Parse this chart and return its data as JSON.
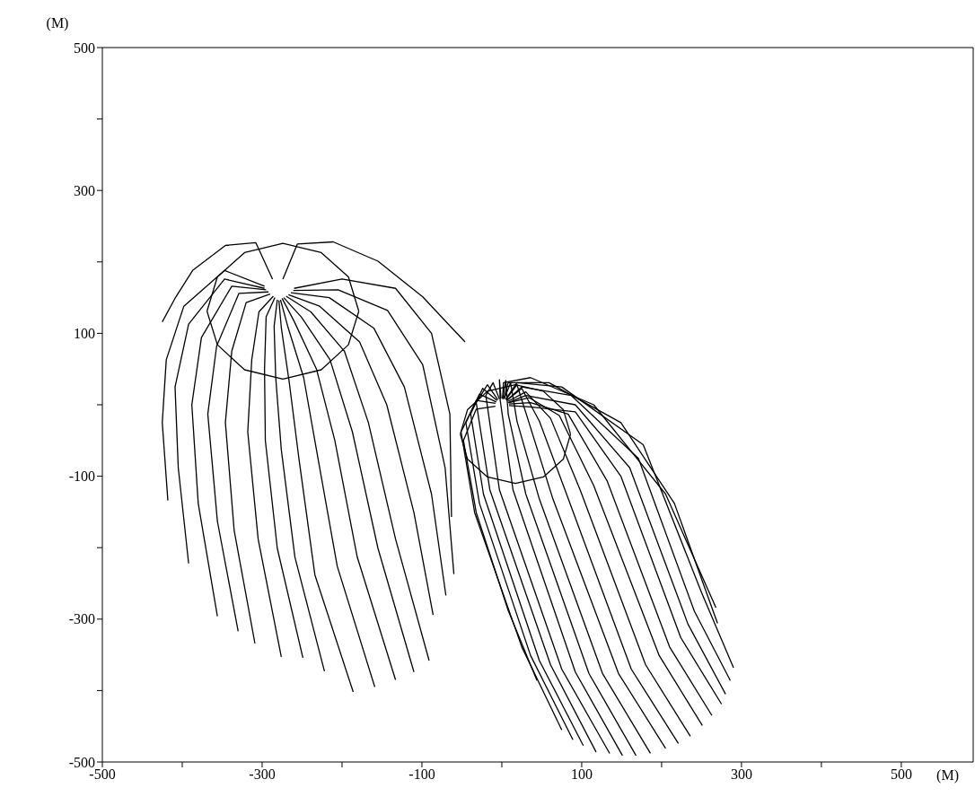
{
  "chart_data": {
    "type": "line",
    "xlabel": "(M)",
    "ylabel": "(M)",
    "xlim": [
      -500,
      590
    ],
    "ylim": [
      -500,
      500
    ],
    "xticks": [
      -500,
      {
        "value": -400,
        "label": null
      },
      -300,
      {
        "value": -200,
        "label": null
      },
      -100,
      {
        "value": 0,
        "label": null
      },
      100,
      {
        "value": 200,
        "label": null
      },
      300,
      {
        "value": 400,
        "label": null
      },
      500
    ],
    "yticks": [
      -500,
      {
        "value": -400,
        "label": null
      },
      -300,
      {
        "value": -200,
        "label": null
      },
      -100,
      {
        "value": 0,
        "label": null
      },
      100,
      {
        "value": 200,
        "label": null
      },
      300,
      {
        "value": 400,
        "label": null
      },
      500
    ],
    "grid": false,
    "marker": "none",
    "line_style": "solid",
    "series": [
      {
        "color": "#000000",
        "x": [
          -369,
          -356,
          -322,
          -274,
          -226,
          -192,
          -179
        ],
        "values": [
          131,
          179,
          213,
          226,
          213,
          179,
          131
        ]
      },
      {
        "color": "#000000",
        "x": [
          -369,
          -356,
          -322,
          -274,
          -226,
          -192,
          -179
        ],
        "values": [
          131,
          84,
          49,
          36,
          49,
          84,
          131
        ]
      },
      {
        "color": "#000000",
        "x": [
          -52,
          -43,
          -18,
          17,
          52,
          77,
          86
        ],
        "values": [
          -41,
          -7,
          19,
          28,
          19,
          -7,
          -41
        ]
      },
      {
        "color": "#000000",
        "x": [
          -52,
          -43,
          -18,
          17,
          52,
          77,
          86
        ],
        "values": [
          -41,
          -76,
          -101,
          -110,
          -101,
          -76,
          -41
        ]
      },
      {
        "color": "#000000",
        "x": [
          -287,
          -308,
          -346,
          -387,
          -408,
          -425
        ],
        "values": [
          176,
          227,
          223,
          188,
          151,
          116
        ]
      },
      {
        "color": "#000000",
        "x": [
          -274,
          -256,
          -211,
          -155,
          -99,
          -46
        ],
        "values": [
          176,
          225,
          228,
          201,
          151,
          88
        ]
      },
      {
        "color": "#000000",
        "x": [
          -297,
          -347,
          -398,
          -420,
          -425,
          -418
        ],
        "values": [
          166,
          188,
          138,
          63,
          -25,
          -134
        ]
      },
      {
        "color": "#000000",
        "x": [
          -297,
          -347,
          -392,
          -409,
          -405,
          -392
        ],
        "values": [
          163,
          176,
          113,
          25,
          -88,
          -222
        ]
      },
      {
        "color": "#000000",
        "x": [
          -295,
          -338,
          -376,
          -388,
          -380,
          -356
        ],
        "values": [
          161,
          166,
          94,
          0,
          -138,
          -296
        ]
      },
      {
        "color": "#000000",
        "x": [
          -292,
          -329,
          -357,
          -368,
          -356,
          -330
        ],
        "values": [
          158,
          156,
          82,
          -13,
          -163,
          -317
        ]
      },
      {
        "color": "#000000",
        "x": [
          -290,
          -320,
          -338,
          -346,
          -335,
          -309
        ],
        "values": [
          155,
          143,
          75,
          -25,
          -176,
          -334
        ]
      },
      {
        "color": "#000000",
        "x": [
          -286,
          -304,
          -313,
          -318,
          -305,
          -276
        ],
        "values": [
          152,
          130,
          63,
          -38,
          -188,
          -353
        ]
      },
      {
        "color": "#000000",
        "x": [
          -284,
          -295,
          -297,
          -296,
          -281,
          -249
        ],
        "values": [
          150,
          123,
          50,
          -50,
          -201,
          -354
        ]
      },
      {
        "color": "#000000",
        "x": [
          -281,
          -285,
          -283,
          -276,
          -259,
          -222
        ],
        "values": [
          147,
          110,
          38,
          -63,
          -213,
          -373
        ]
      },
      {
        "color": "#000000",
        "x": [
          -279,
          -276,
          -266,
          -254,
          -234,
          -186
        ],
        "values": [
          146,
          108,
          31,
          -75,
          -238,
          -402
        ]
      },
      {
        "color": "#000000",
        "x": [
          -277,
          -268,
          -248,
          -232,
          -206,
          -159
        ],
        "values": [
          147,
          110,
          38,
          -63,
          -226,
          -395
        ]
      },
      {
        "color": "#000000",
        "x": [
          -275,
          -260,
          -232,
          -209,
          -181,
          -133
        ],
        "values": [
          149,
          117,
          50,
          -50,
          -213,
          -385
        ]
      },
      {
        "color": "#000000",
        "x": [
          -273,
          -251,
          -215,
          -187,
          -155,
          -110
        ],
        "values": [
          150,
          123,
          63,
          -38,
          -201,
          -374
        ]
      },
      {
        "color": "#000000",
        "x": [
          -270,
          -239,
          -197,
          -167,
          -133,
          -91
        ],
        "values": [
          152,
          130,
          75,
          -25,
          -188,
          -358
        ]
      },
      {
        "color": "#000000",
        "x": [
          -267,
          -228,
          -178,
          -144,
          -110,
          -86
        ],
        "values": [
          154,
          138,
          88,
          0,
          -151,
          -294
        ]
      },
      {
        "color": "#000000",
        "x": [
          -264,
          -216,
          -160,
          -122,
          -88,
          -70
        ],
        "values": [
          157,
          150,
          107,
          25,
          -125,
          -267
        ]
      },
      {
        "color": "#000000",
        "x": [
          -261,
          -205,
          -143,
          -99,
          -71,
          -60
        ],
        "values": [
          160,
          161,
          132,
          56,
          -88,
          -237
        ]
      },
      {
        "color": "#000000",
        "x": [
          -260,
          -200,
          -133,
          -88,
          -65,
          -63
        ],
        "values": [
          163,
          176,
          163,
          100,
          -13,
          -157
        ]
      },
      {
        "color": "#000000",
        "x": [
          -8,
          -32,
          -48,
          -32,
          8,
          44
        ],
        "values": [
          -2,
          -6,
          -50,
          -151,
          -288,
          -386
        ]
      },
      {
        "color": "#000000",
        "x": [
          -8,
          -32,
          -51,
          -34,
          25,
          75
        ],
        "values": [
          2,
          6,
          -38,
          -151,
          -339,
          -455
        ]
      },
      {
        "color": "#000000",
        "x": [
          -7,
          -28,
          -45,
          -28,
          36,
          89
        ],
        "values": [
          4,
          15,
          -25,
          -138,
          -351,
          -469
        ]
      },
      {
        "color": "#000000",
        "x": [
          -6,
          -24,
          -39,
          -23,
          47,
          102
        ],
        "values": [
          6,
          23,
          -13,
          -125,
          -358,
          -477
        ]
      },
      {
        "color": "#000000",
        "x": [
          -5,
          -18,
          -32,
          -15,
          61,
          118
        ],
        "values": [
          7,
          28,
          3,
          -119,
          -364,
          -486
        ]
      },
      {
        "color": "#000000",
        "x": [
          -3,
          -11,
          -20,
          -3,
          75,
          135
        ],
        "values": [
          8,
          31,
          13,
          -119,
          -370,
          -488
        ]
      },
      {
        "color": "#000000",
        "x": [
          -1,
          -3,
          -2,
          14,
          92,
          151
        ],
        "values": [
          9,
          35,
          6,
          -119,
          -374,
          -491
        ]
      },
      {
        "color": "#000000",
        "x": [
          1,
          5,
          8,
          30,
          109,
          168
        ],
        "values": [
          9,
          34,
          -13,
          -125,
          -376,
          -491
        ]
      },
      {
        "color": "#000000",
        "x": [
          3,
          11,
          19,
          47,
          126,
          186
        ],
        "values": [
          8,
          31,
          -23,
          -132,
          -376,
          -488
        ]
      },
      {
        "color": "#000000",
        "x": [
          5,
          19,
          34,
          64,
          146,
          205
        ],
        "values": [
          7,
          28,
          -25,
          -132,
          -376,
          -481
        ]
      },
      {
        "color": "#000000",
        "x": [
          6,
          25,
          47,
          81,
          162,
          221
        ],
        "values": [
          6,
          23,
          -23,
          -125,
          -370,
          -474
        ]
      },
      {
        "color": "#000000",
        "x": [
          8,
          30,
          61,
          98,
          180,
          236
        ],
        "values": [
          5,
          18,
          -19,
          -119,
          -364,
          -464
        ]
      },
      {
        "color": "#000000",
        "x": [
          9,
          34,
          72,
          115,
          197,
          251
        ],
        "values": [
          3,
          10,
          -15,
          -113,
          -351,
          -449
        ]
      },
      {
        "color": "#000000",
        "x": [
          9,
          36,
          83,
          132,
          210,
          263
        ],
        "values": [
          1,
          3,
          -13,
          -107,
          -339,
          -435
        ]
      },
      {
        "color": "#000000",
        "x": [
          9,
          36,
          92,
          149,
          224,
          275
        ],
        "values": [
          -1,
          -3,
          -10,
          -100,
          -326,
          -419
        ]
      },
      {
        "color": "#000000",
        "x": [
          8,
          30,
          92,
          160,
          233,
          280
        ],
        "values": [
          3,
          13,
          0,
          -88,
          -307,
          -405
        ]
      },
      {
        "color": "#000000",
        "x": [
          7,
          25,
          87,
          171,
          241,
          286
        ],
        "values": [
          7,
          25,
          13,
          -75,
          -289,
          -386
        ]
      },
      {
        "color": "#000000",
        "x": [
          5,
          19,
          75,
          177,
          250,
          290
        ],
        "values": [
          8,
          31,
          25,
          -56,
          -263,
          -368
        ]
      },
      {
        "color": "#000000",
        "x": [
          2,
          8,
          59,
          149,
          216,
          270
        ],
        "values": [
          8,
          31,
          31,
          -25,
          -138,
          -306
        ]
      },
      {
        "color": "#000000",
        "x": [
          1,
          2,
          36,
          115,
          205,
          268
        ],
        "values": [
          8,
          31,
          38,
          0,
          -125,
          -284
        ]
      }
    ]
  }
}
